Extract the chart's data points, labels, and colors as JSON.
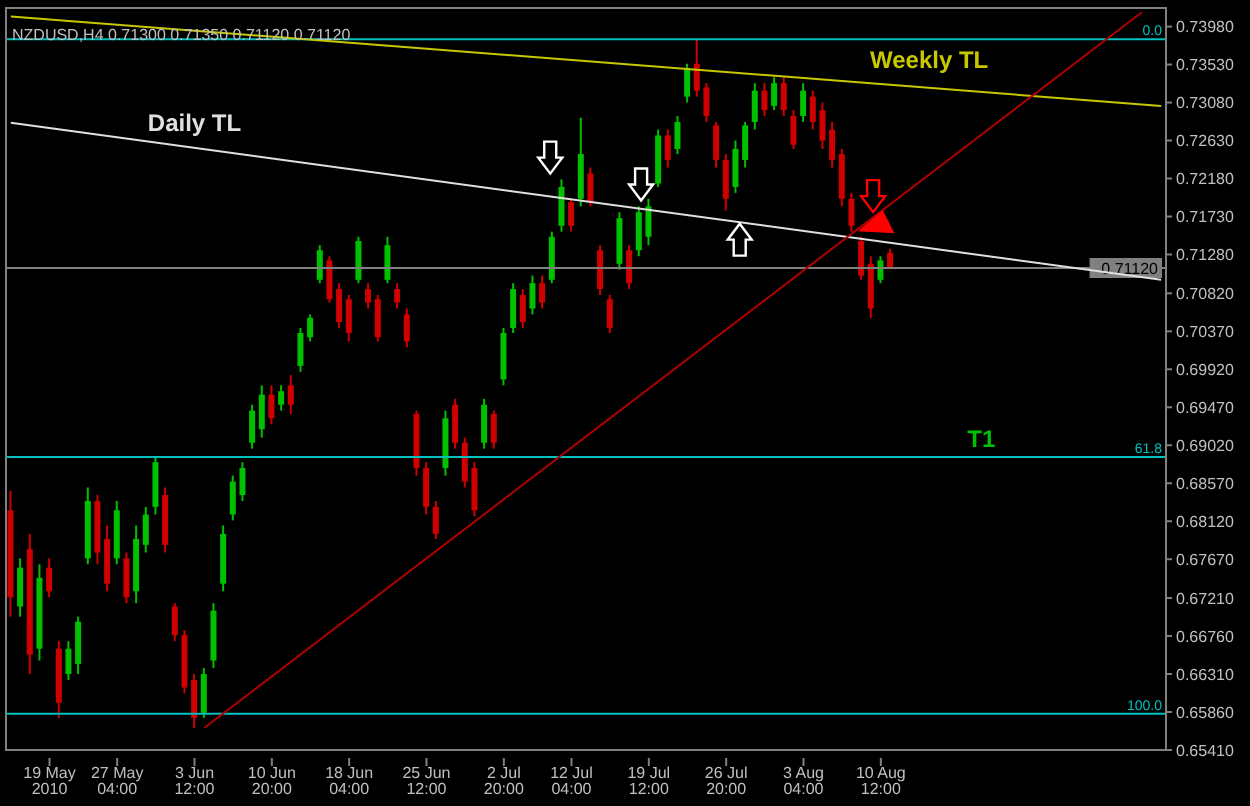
{
  "chart_data": {
    "type": "candlestick",
    "title": "NZDUSD,H4  0.71300 0.71350 0.71120 0.71120",
    "categories": [
      null,
      null,
      null,
      null,
      "19 May 2010",
      null,
      null,
      null,
      null,
      null,
      null,
      "27 May 04:00",
      null,
      null,
      null,
      null,
      null,
      null,
      null,
      "3 Jun 12:00",
      null,
      null,
      null,
      null,
      null,
      null,
      null,
      "10 Jun 20:00",
      null,
      null,
      null,
      null,
      null,
      null,
      null,
      "18 Jun 04:00",
      null,
      null,
      null,
      null,
      null,
      null,
      null,
      "25 Jun 12:00",
      null,
      null,
      null,
      null,
      null,
      null,
      null,
      "2 Jul 20:00",
      null,
      null,
      null,
      null,
      null,
      null,
      "12 Jul 04:00",
      null,
      null,
      null,
      null,
      null,
      null,
      null,
      "19 Jul 12:00",
      null,
      null,
      null,
      null,
      null,
      null,
      null,
      "26 Jul 20:00",
      null,
      null,
      null,
      null,
      null,
      null,
      null,
      "3 Aug 04:00",
      null,
      null,
      null,
      null,
      null,
      null,
      null,
      "10 Aug 12:00",
      null,
      null,
      null,
      null,
      null,
      null,
      null,
      null,
      null,
      null,
      null,
      null,
      null,
      null,
      null,
      null,
      null,
      null,
      null,
      null,
      null,
      null,
      null,
      null,
      null,
      null,
      null,
      null,
      null
    ],
    "ohlc": [
      [
        0.6825,
        0.6848,
        0.6699,
        0.6722
      ],
      [
        0.6711,
        0.6768,
        0.6699,
        0.6757
      ],
      [
        0.6779,
        0.6797,
        0.6631,
        0.6654
      ],
      [
        0.6661,
        0.6761,
        0.6647,
        0.6745
      ],
      [
        0.6757,
        0.6768,
        0.6722,
        0.6729
      ],
      [
        0.6661,
        0.667,
        0.6579,
        0.6597
      ],
      [
        0.6631,
        0.667,
        0.6624,
        0.6661
      ],
      [
        0.6643,
        0.6699,
        0.6631,
        0.6693
      ],
      [
        0.6768,
        0.6852,
        0.6761,
        0.6836
      ],
      [
        0.6836,
        0.6843,
        0.6761,
        0.6775
      ],
      [
        0.6791,
        0.6807,
        0.6729,
        0.6738
      ],
      [
        0.6768,
        0.6836,
        0.6761,
        0.6825
      ],
      [
        0.6768,
        0.6775,
        0.6715,
        0.6722
      ],
      [
        0.6729,
        0.6807,
        0.6715,
        0.6791
      ],
      [
        0.6784,
        0.6829,
        0.6775,
        0.682
      ],
      [
        0.6829,
        0.6889,
        0.682,
        0.6882
      ],
      [
        0.6843,
        0.6852,
        0.6775,
        0.6784
      ],
      [
        0.6711,
        0.6715,
        0.667,
        0.6677
      ],
      [
        0.6677,
        0.6683,
        0.6608,
        0.6615
      ],
      [
        0.6624,
        0.6631,
        0.6567,
        0.6579
      ],
      [
        0.6585,
        0.6638,
        0.6579,
        0.6631
      ],
      [
        0.6647,
        0.6715,
        0.6638,
        0.6706
      ],
      [
        0.6738,
        0.6807,
        0.6729,
        0.6797
      ],
      [
        0.682,
        0.6866,
        0.6813,
        0.6859
      ],
      [
        0.6843,
        0.6882,
        0.6836,
        0.6875
      ],
      [
        0.6905,
        0.695,
        0.6898,
        0.6943
      ],
      [
        0.6921,
        0.6973,
        0.6911,
        0.6962
      ],
      [
        0.6962,
        0.6973,
        0.6927,
        0.6934
      ],
      [
        0.695,
        0.6973,
        0.6943,
        0.6966
      ],
      [
        0.6973,
        0.6985,
        0.6939,
        0.695
      ],
      [
        0.6996,
        0.7041,
        0.6989,
        0.7035
      ],
      [
        0.703,
        0.7057,
        0.7025,
        0.7053
      ],
      [
        0.7098,
        0.7139,
        0.7094,
        0.7133
      ],
      [
        0.7121,
        0.7126,
        0.7071,
        0.7075
      ],
      [
        0.7087,
        0.7094,
        0.7041,
        0.7048
      ],
      [
        0.7075,
        0.708,
        0.7025,
        0.7035
      ],
      [
        0.7098,
        0.7149,
        0.7094,
        0.7144
      ],
      [
        0.7087,
        0.7094,
        0.7064,
        0.7071
      ],
      [
        0.7075,
        0.708,
        0.7025,
        0.703
      ],
      [
        0.7098,
        0.7149,
        0.7094,
        0.7139
      ],
      [
        0.7087,
        0.7094,
        0.7064,
        0.7071
      ],
      [
        0.7057,
        0.7064,
        0.7018,
        0.7025
      ],
      [
        0.6939,
        0.6943,
        0.6866,
        0.6875
      ],
      [
        0.6875,
        0.6882,
        0.682,
        0.6829
      ],
      [
        0.6829,
        0.6836,
        0.6791,
        0.6797
      ],
      [
        0.6875,
        0.6943,
        0.6866,
        0.6934
      ],
      [
        0.695,
        0.6957,
        0.6898,
        0.6905
      ],
      [
        0.6905,
        0.6911,
        0.6852,
        0.6859
      ],
      [
        0.6875,
        0.6882,
        0.6818,
        0.6825
      ],
      [
        0.6905,
        0.6957,
        0.6898,
        0.695
      ],
      [
        0.6939,
        0.6943,
        0.6898,
        0.6905
      ],
      [
        0.698,
        0.7041,
        0.6973,
        0.7035
      ],
      [
        0.7041,
        0.7094,
        0.7035,
        0.7087
      ],
      [
        0.708,
        0.7087,
        0.7041,
        0.7048
      ],
      [
        0.7064,
        0.7103,
        0.7057,
        0.7094
      ],
      [
        0.7094,
        0.7103,
        0.7064,
        0.7071
      ],
      [
        0.7098,
        0.7155,
        0.7094,
        0.7149
      ],
      [
        0.7162,
        0.7217,
        0.7155,
        0.7208
      ],
      [
        0.719,
        0.7194,
        0.7155,
        0.7162
      ],
      [
        0.7194,
        0.729,
        0.7185,
        0.7247
      ],
      [
        0.7224,
        0.7231,
        0.7185,
        0.719
      ],
      [
        0.7133,
        0.7139,
        0.708,
        0.7087
      ],
      [
        0.7075,
        0.708,
        0.7035,
        0.7041
      ],
      [
        0.7117,
        0.7178,
        0.711,
        0.7171
      ],
      [
        0.7133,
        0.7139,
        0.7087,
        0.7094
      ],
      [
        0.7133,
        0.7185,
        0.7126,
        0.7178
      ],
      [
        0.7149,
        0.7194,
        0.7139,
        0.7185
      ],
      [
        0.7212,
        0.7276,
        0.7208,
        0.7269
      ],
      [
        0.7269,
        0.7276,
        0.7231,
        0.724
      ],
      [
        0.7253,
        0.7292,
        0.7247,
        0.7285
      ],
      [
        0.7315,
        0.7354,
        0.7308,
        0.7349
      ],
      [
        0.7354,
        0.7383,
        0.7315,
        0.7322
      ],
      [
        0.7326,
        0.7331,
        0.7285,
        0.7292
      ],
      [
        0.7281,
        0.7285,
        0.7231,
        0.724
      ],
      [
        0.724,
        0.7247,
        0.718,
        0.7194
      ],
      [
        0.7208,
        0.7263,
        0.7201,
        0.7253
      ],
      [
        0.724,
        0.7285,
        0.7231,
        0.7281
      ],
      [
        0.7285,
        0.7331,
        0.7276,
        0.7322
      ],
      [
        0.7322,
        0.7331,
        0.7292,
        0.7299
      ],
      [
        0.7304,
        0.7338,
        0.7299,
        0.7331
      ],
      [
        0.7331,
        0.7338,
        0.7292,
        0.7299
      ],
      [
        0.7292,
        0.7299,
        0.7253,
        0.7258
      ],
      [
        0.7292,
        0.7331,
        0.7285,
        0.7322
      ],
      [
        0.7315,
        0.7322,
        0.7276,
        0.7285
      ],
      [
        0.7299,
        0.7308,
        0.7253,
        0.7263
      ],
      [
        0.7276,
        0.7285,
        0.7231,
        0.724
      ],
      [
        0.7247,
        0.7253,
        0.7185,
        0.7194
      ],
      [
        0.7194,
        0.7201,
        0.7155,
        0.7162
      ],
      [
        0.7144,
        0.7149,
        0.7098,
        0.7103
      ],
      [
        0.7117,
        0.7126,
        0.7053,
        0.7064
      ],
      [
        0.7098,
        0.7126,
        0.7094,
        0.7121
      ],
      [
        0.713,
        0.7135,
        0.7112,
        0.7112
      ],
      null,
      null,
      null,
      null,
      null,
      null,
      null,
      null,
      null,
      null,
      null,
      null,
      null,
      null,
      null,
      null,
      null,
      null,
      null,
      null,
      null,
      null,
      null,
      null,
      null,
      null,
      null,
      null
    ],
    "colors": [
      "#d00000",
      "#00c000",
      "#d00000",
      "#00c000",
      "#d00000",
      "#d00000",
      "#00c000",
      "#00c000",
      "#00c000",
      "#d00000",
      "#d00000",
      "#00c000",
      "#d00000",
      "#00c000",
      "#00c000",
      "#00c000",
      "#d00000",
      "#d00000",
      "#d00000",
      "#d00000",
      "#00c000",
      "#00c000",
      "#00c000",
      "#00c000",
      "#00c000",
      "#00c000",
      "#00c000",
      "#d00000",
      "#00c000",
      "#d00000",
      "#00c000",
      "#00c000",
      "#00c000",
      "#d00000",
      "#d00000",
      "#d00000",
      "#00c000",
      "#d00000",
      "#d00000",
      "#00c000",
      "#d00000",
      "#d00000",
      "#d00000",
      "#d00000",
      "#d00000",
      "#00c000",
      "#d00000",
      "#d00000",
      "#d00000",
      "#00c000",
      "#d00000",
      "#00c000",
      "#00c000",
      "#d00000",
      "#00c000",
      "#d00000",
      "#00c000",
      "#00c000",
      "#d00000",
      "#00c000",
      "#d00000",
      "#d00000",
      "#d00000",
      "#00c000",
      "#d00000",
      "#00c000",
      "#00c000",
      "#00c000",
      "#d00000",
      "#00c000",
      "#00c000",
      "#d00000",
      "#d00000",
      "#d00000",
      "#d00000",
      "#00c000",
      "#00c000",
      "#00c000",
      "#d00000",
      "#00c000",
      "#d00000",
      "#d00000",
      "#00c000",
      "#d00000",
      "#d00000",
      "#d00000",
      "#d00000",
      "#d00000",
      "#d00000",
      "#d00000",
      "#00c000",
      "#d00000",
      null,
      null,
      null,
      null,
      null,
      null,
      null,
      null,
      null,
      null,
      null,
      null,
      null,
      null,
      null,
      null,
      null,
      null,
      null,
      null,
      null,
      null,
      null,
      null,
      null,
      null,
      null,
      null
    ],
    "series": [
      {
        "type": "line",
        "name": "Weekly TL",
        "color": "#c8c800",
        "values": [
          0.741,
          null,
          null,
          null,
          null,
          null,
          null,
          null,
          null,
          null,
          null,
          null,
          null,
          null,
          null,
          null,
          null,
          null,
          null,
          null,
          null,
          null,
          null,
          null,
          null,
          null,
          null,
          null,
          null,
          null,
          null,
          null,
          null,
          null,
          null,
          null,
          null,
          null,
          null,
          null,
          null,
          null,
          null,
          null,
          null,
          null,
          null,
          null,
          null,
          null,
          null,
          null,
          null,
          null,
          null,
          null,
          null,
          null,
          null,
          null,
          null,
          null,
          null,
          null,
          null,
          null,
          null,
          null,
          null,
          null,
          null,
          null,
          null,
          null,
          null,
          null,
          null,
          null,
          null,
          null,
          null,
          null,
          null,
          null,
          null,
          null,
          null,
          null,
          null,
          null,
          null,
          null,
          null,
          null,
          null,
          null,
          null,
          null,
          null,
          null,
          null,
          null,
          null,
          null,
          null,
          null,
          null,
          null,
          null,
          null,
          null,
          null,
          null,
          null,
          null,
          null,
          null,
          null,
          null,
          0.7304
        ]
      },
      {
        "type": "line",
        "name": "Daily TL",
        "color": "#e0e0e0",
        "values": [
          0.7284,
          null,
          null,
          null,
          null,
          null,
          null,
          null,
          null,
          null,
          null,
          null,
          null,
          null,
          null,
          null,
          null,
          null,
          null,
          null,
          null,
          null,
          null,
          null,
          null,
          null,
          null,
          null,
          null,
          null,
          null,
          null,
          null,
          null,
          null,
          null,
          null,
          null,
          null,
          null,
          null,
          null,
          null,
          null,
          null,
          null,
          null,
          null,
          null,
          null,
          null,
          null,
          null,
          null,
          null,
          null,
          null,
          null,
          null,
          null,
          null,
          null,
          null,
          null,
          null,
          null,
          null,
          null,
          null,
          null,
          null,
          null,
          null,
          null,
          null,
          null,
          null,
          null,
          null,
          null,
          null,
          null,
          null,
          null,
          null,
          null,
          null,
          null,
          null,
          null,
          null,
          null,
          null,
          null,
          null,
          null,
          null,
          null,
          null,
          null,
          null,
          null,
          null,
          null,
          null,
          null,
          null,
          null,
          null,
          null,
          null,
          null,
          null,
          null,
          null,
          null,
          null,
          null,
          null,
          0.7098
        ]
      },
      {
        "type": "line",
        "color": "#b00000",
        "values": [
          null,
          null,
          null,
          null,
          null,
          null,
          null,
          null,
          null,
          null,
          null,
          null,
          null,
          null,
          null,
          null,
          null,
          null,
          null,
          null,
          0.6567,
          null,
          null,
          null,
          null,
          null,
          null,
          null,
          null,
          null,
          null,
          null,
          null,
          null,
          null,
          null,
          null,
          null,
          null,
          null,
          null,
          null,
          null,
          null,
          null,
          null,
          null,
          null,
          null,
          null,
          null,
          null,
          null,
          null,
          null,
          null,
          null,
          null,
          null,
          null,
          null,
          null,
          null,
          null,
          null,
          null,
          null,
          null,
          null,
          null,
          null,
          null,
          null,
          null,
          null,
          null,
          null,
          null,
          null,
          null,
          null,
          null,
          null,
          null,
          null,
          null,
          null,
          null,
          null,
          null,
          null,
          null,
          null,
          null,
          null,
          null,
          null,
          null,
          null,
          null,
          null,
          null,
          null,
          null,
          null,
          null,
          null,
          null,
          null,
          null,
          null,
          null,
          null,
          null,
          null,
          null,
          null,
          0.7415,
          null,
          null
        ]
      }
    ],
    "ylim": [
      0.6541,
      0.742
    ],
    "yticks": [
      {
        "value": 0.7398,
        "label": "0.73980"
      },
      {
        "value": 0.7353,
        "label": "0.73530"
      },
      {
        "value": 0.7308,
        "label": "0.73080"
      },
      {
        "value": 0.7263,
        "label": "0.72630"
      },
      {
        "value": 0.7218,
        "label": "0.72180"
      },
      {
        "value": 0.7173,
        "label": "0.71730"
      },
      {
        "value": 0.7128,
        "label": "0.71280"
      },
      {
        "value": 0.7082,
        "label": "0.70820"
      },
      {
        "value": 0.7037,
        "label": "0.70370"
      },
      {
        "value": 0.6992,
        "label": "0.69920"
      },
      {
        "value": 0.6947,
        "label": "0.69470"
      },
      {
        "value": 0.6902,
        "label": "0.69020"
      },
      {
        "value": 0.6857,
        "label": "0.68570"
      },
      {
        "value": 0.6812,
        "label": "0.68120"
      },
      {
        "value": 0.6767,
        "label": "0.67670"
      },
      {
        "value": 0.6721,
        "label": "0.67210"
      },
      {
        "value": 0.6676,
        "label": "0.66760"
      },
      {
        "value": 0.6631,
        "label": "0.66310"
      },
      {
        "value": 0.6586,
        "label": "0.65860"
      },
      {
        "value": 0.6541,
        "label": "0.65410"
      }
    ],
    "ref_lines": [
      {
        "axis": "y",
        "value": 0.7383,
        "color": "#00c0c0"
      },
      {
        "axis": "y",
        "value": 0.6888,
        "color": "#00c0c0"
      },
      {
        "axis": "y",
        "value": 0.6584,
        "color": "#00c0c0"
      },
      {
        "axis": "y",
        "value": 0.7112,
        "label": "0.71120",
        "color": "#808080"
      }
    ],
    "annotations": [
      {
        "text": "T1",
        "y": 0.6888
      },
      {
        "text": "0.0",
        "y": 0.7383
      },
      {
        "text": "61.8",
        "y": 0.6888
      },
      {
        "text": "100.0",
        "y": 0.6584
      }
    ]
  }
}
